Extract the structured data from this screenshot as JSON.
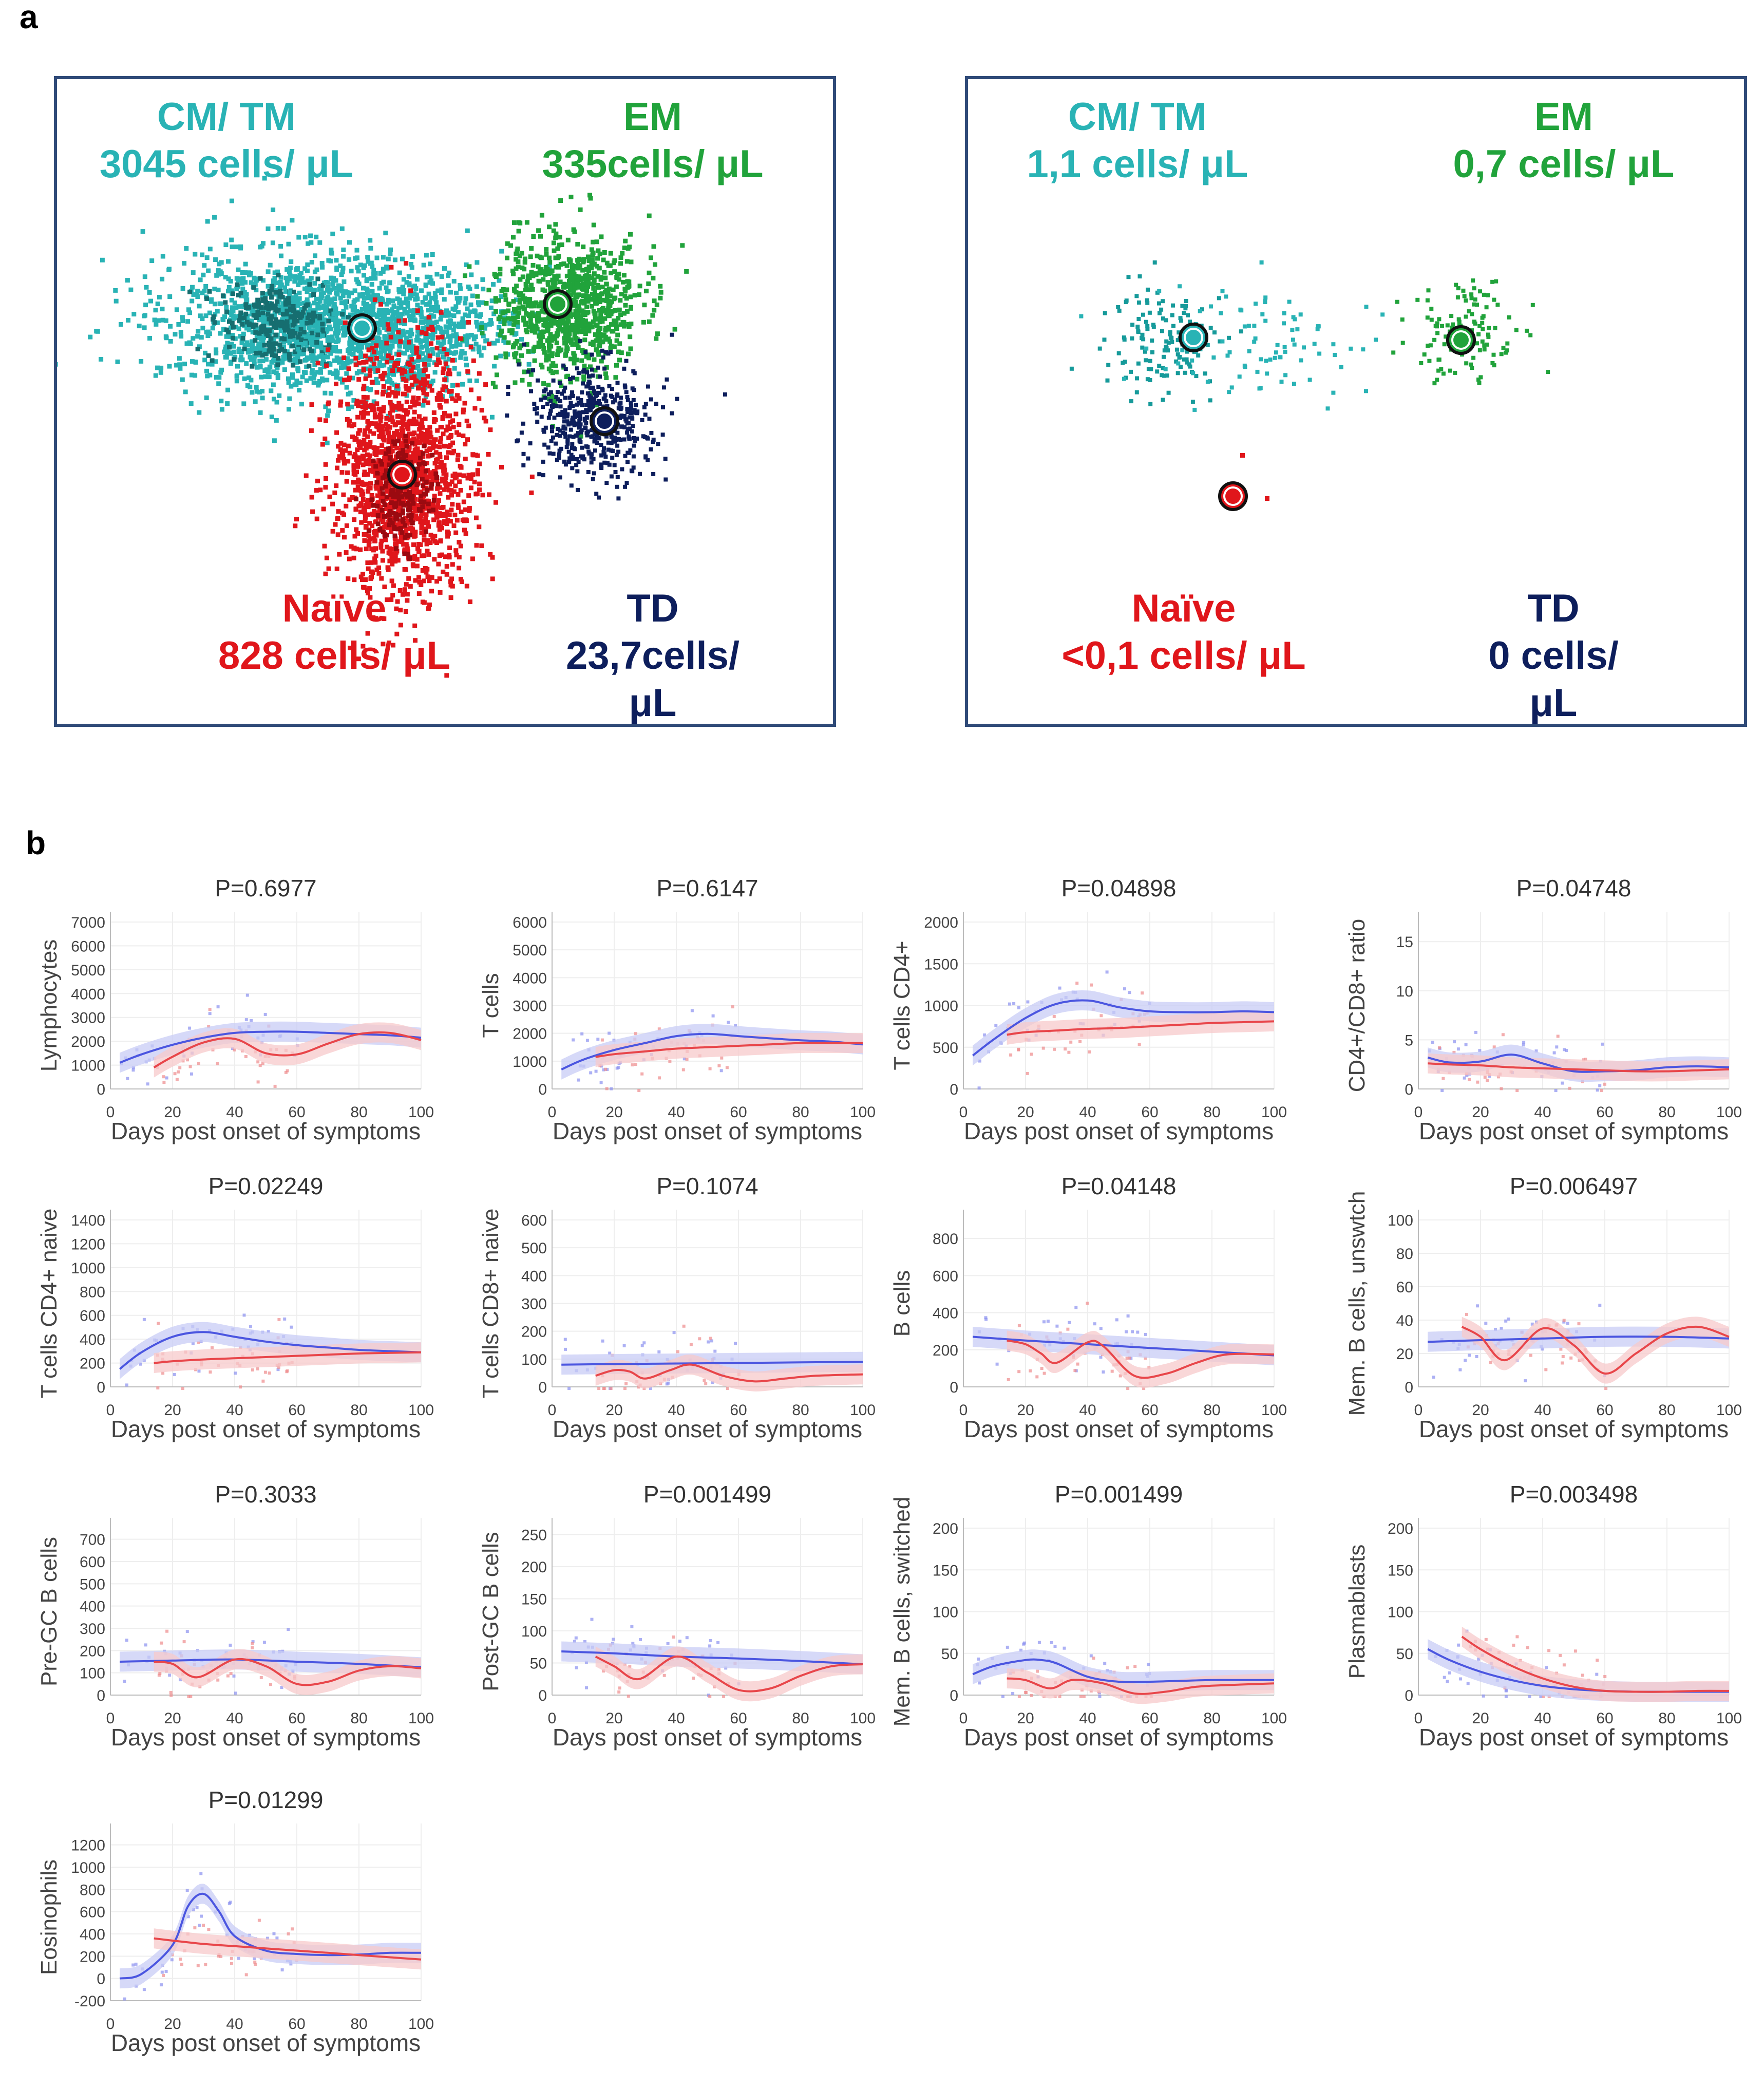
{
  "panel_a": {
    "letter": "a",
    "left": {
      "cm_tm": {
        "title": "CM/ TM",
        "value": "3045 cells/ μL"
      },
      "em": {
        "title": "EM",
        "value": "335cells/ μL"
      },
      "naive": {
        "title": "Naïve",
        "value": "828 cells/ μL"
      },
      "td": {
        "title": "TD",
        "value_line1": "23,7cells/",
        "value_line2": "μL"
      }
    },
    "right": {
      "cm_tm": {
        "title": "CM/ TM",
        "value": "1,1 cells/ μL"
      },
      "em": {
        "title": "EM",
        "value": "0,7 cells/ μL"
      },
      "naive": {
        "title": "Naïve",
        "value": "<0,1 cells/ μL"
      },
      "td": {
        "title": "TD",
        "value_line1": "0 cells/",
        "value_line2": "μL"
      }
    },
    "colors": {
      "cm_tm": "#29b3b5",
      "em": "#21a33b",
      "naive": "#e0161b",
      "td": "#0d1e5c",
      "box": "#2f4a78"
    }
  },
  "panel_b": {
    "letter": "b",
    "x_axis_label": "Days post onset of symptoms",
    "colors": {
      "blue": "#4b56e0",
      "red": "#e8464a",
      "blue_band": "#c8ccf5",
      "red_band": "#f7c9cb"
    }
  },
  "chart_data": [
    {
      "type": "line",
      "title": "P=0.6977",
      "ylabel": "Lymphocytes",
      "xlim": [
        0,
        100
      ],
      "ylim": [
        0,
        7000
      ],
      "yticks": [
        0,
        1000,
        2000,
        3000,
        4000,
        5000,
        6000,
        7000
      ],
      "xticks": [
        0,
        20,
        40,
        60,
        80,
        100
      ],
      "series": [
        {
          "color": "blue",
          "x": [
            3,
            10,
            20,
            30,
            40,
            50,
            60,
            70,
            80,
            90,
            100
          ],
          "y": [
            1100,
            1450,
            1850,
            2150,
            2350,
            2400,
            2400,
            2350,
            2300,
            2250,
            2150
          ]
        },
        {
          "color": "red",
          "x": [
            14,
            20,
            30,
            40,
            50,
            60,
            70,
            80,
            90,
            100
          ],
          "y": [
            900,
            1350,
            1950,
            2100,
            1500,
            1450,
            1900,
            2300,
            2350,
            2050
          ]
        }
      ]
    },
    {
      "type": "line",
      "title": "P=0.6147",
      "ylabel": "T cells",
      "xlim": [
        0,
        100
      ],
      "ylim": [
        0,
        6000
      ],
      "yticks": [
        0,
        1000,
        2000,
        3000,
        4000,
        5000,
        6000
      ],
      "xticks": [
        0,
        20,
        40,
        60,
        80,
        100
      ],
      "series": [
        {
          "color": "blue",
          "x": [
            3,
            10,
            20,
            30,
            40,
            50,
            60,
            70,
            80,
            90,
            100
          ],
          "y": [
            700,
            1050,
            1400,
            1650,
            1900,
            1980,
            1900,
            1820,
            1750,
            1700,
            1600
          ]
        },
        {
          "color": "red",
          "x": [
            14,
            20,
            30,
            40,
            50,
            60,
            70,
            80,
            90,
            100
          ],
          "y": [
            1150,
            1250,
            1350,
            1450,
            1500,
            1550,
            1600,
            1650,
            1650,
            1650
          ]
        }
      ]
    },
    {
      "type": "line",
      "title": "P=0.04898",
      "ylabel": "T cells CD4+",
      "xlim": [
        0,
        100
      ],
      "ylim": [
        0,
        2000
      ],
      "yticks": [
        0,
        500,
        1000,
        1500,
        2000
      ],
      "xticks": [
        0,
        20,
        40,
        60,
        80,
        100
      ],
      "series": [
        {
          "color": "blue",
          "x": [
            3,
            10,
            20,
            30,
            40,
            50,
            60,
            70,
            80,
            90,
            100
          ],
          "y": [
            400,
            600,
            850,
            1020,
            1060,
            980,
            930,
            920,
            920,
            930,
            920
          ]
        },
        {
          "color": "red",
          "x": [
            14,
            20,
            30,
            40,
            50,
            60,
            70,
            80,
            90,
            100
          ],
          "y": [
            650,
            680,
            700,
            720,
            730,
            750,
            770,
            790,
            800,
            810
          ]
        }
      ]
    },
    {
      "type": "line",
      "title": "P=0.04748",
      "ylabel": "CD4+/CD8+ ratio",
      "xlim": [
        0,
        100
      ],
      "ylim": [
        0,
        17
      ],
      "yticks": [
        0,
        5,
        10,
        15
      ],
      "xticks": [
        0,
        20,
        40,
        60,
        80,
        100
      ],
      "series": [
        {
          "color": "blue",
          "x": [
            3,
            10,
            20,
            30,
            40,
            50,
            60,
            70,
            80,
            90,
            100
          ],
          "y": [
            3.2,
            2.7,
            2.8,
            3.5,
            2.6,
            1.8,
            1.8,
            1.9,
            2.2,
            2.3,
            2.2
          ]
        },
        {
          "color": "red",
          "x": [
            3,
            10,
            20,
            30,
            40,
            50,
            60,
            70,
            80,
            90,
            100
          ],
          "y": [
            2.6,
            2.5,
            2.4,
            2.2,
            2.1,
            2.0,
            1.9,
            1.8,
            1.8,
            1.9,
            2.0
          ]
        }
      ]
    },
    {
      "type": "line",
      "title": "P=0.02249",
      "ylabel": "T cells CD4+ naive",
      "xlim": [
        0,
        100
      ],
      "ylim": [
        0,
        1400
      ],
      "yticks": [
        0,
        200,
        400,
        600,
        800,
        1000,
        1200,
        1400
      ],
      "xticks": [
        0,
        20,
        40,
        60,
        80,
        100
      ],
      "series": [
        {
          "color": "blue",
          "x": [
            3,
            10,
            20,
            30,
            40,
            50,
            60,
            70,
            80,
            90,
            100
          ],
          "y": [
            150,
            290,
            420,
            460,
            420,
            380,
            350,
            330,
            310,
            300,
            290
          ]
        },
        {
          "color": "red",
          "x": [
            14,
            20,
            30,
            40,
            50,
            60,
            70,
            80,
            90,
            100
          ],
          "y": [
            200,
            215,
            230,
            240,
            250,
            260,
            270,
            280,
            285,
            290
          ]
        }
      ]
    },
    {
      "type": "line",
      "title": "P=0.1074",
      "ylabel": "T cells CD8+ naive",
      "xlim": [
        0,
        100
      ],
      "ylim": [
        0,
        600
      ],
      "yticks": [
        0,
        100,
        200,
        300,
        400,
        500,
        600
      ],
      "xticks": [
        0,
        20,
        40,
        60,
        80,
        100
      ],
      "series": [
        {
          "color": "blue",
          "x": [
            3,
            20,
            40,
            60,
            80,
            100
          ],
          "y": [
            80,
            82,
            84,
            86,
            88,
            90
          ]
        },
        {
          "color": "red",
          "x": [
            14,
            20,
            25,
            30,
            38,
            45,
            55,
            65,
            75,
            85,
            100
          ],
          "y": [
            40,
            60,
            55,
            30,
            60,
            80,
            40,
            20,
            30,
            40,
            45
          ]
        }
      ]
    },
    {
      "type": "line",
      "title": "P=0.04148",
      "ylabel": "B cells",
      "xlim": [
        0,
        100
      ],
      "ylim": [
        0,
        900
      ],
      "yticks": [
        0,
        200,
        400,
        600,
        800
      ],
      "xticks": [
        0,
        20,
        40,
        60,
        80,
        100
      ],
      "series": [
        {
          "color": "blue",
          "x": [
            3,
            20,
            40,
            60,
            80,
            100
          ],
          "y": [
            270,
            250,
            230,
            210,
            190,
            170
          ]
        },
        {
          "color": "red",
          "x": [
            14,
            20,
            25,
            30,
            40,
            45,
            55,
            65,
            75,
            85,
            100
          ],
          "y": [
            250,
            230,
            180,
            130,
            240,
            220,
            60,
            70,
            130,
            175,
            175
          ]
        }
      ]
    },
    {
      "type": "line",
      "title": "P=0.006497",
      "ylabel": "Mem. B cells, unswtch",
      "xlim": [
        0,
        100
      ],
      "ylim": [
        0,
        100
      ],
      "yticks": [
        0,
        20,
        40,
        60,
        80,
        100
      ],
      "xticks": [
        0,
        20,
        40,
        60,
        80,
        100
      ],
      "series": [
        {
          "color": "blue",
          "x": [
            3,
            20,
            40,
            60,
            80,
            100
          ],
          "y": [
            27,
            28,
            29,
            30,
            30,
            29
          ]
        },
        {
          "color": "red",
          "x": [
            14,
            20,
            28,
            40,
            50,
            60,
            70,
            80,
            90,
            100
          ],
          "y": [
            36,
            30,
            16,
            35,
            25,
            8,
            20,
            32,
            36,
            30
          ]
        }
      ]
    },
    {
      "type": "line",
      "title": "P=0.3033",
      "ylabel": "Pre-GC B cells",
      "xlim": [
        0,
        100
      ],
      "ylim": [
        0,
        750
      ],
      "yticks": [
        0,
        100,
        200,
        300,
        400,
        500,
        600,
        700
      ],
      "xticks": [
        0,
        20,
        40,
        60,
        80,
        100
      ],
      "series": [
        {
          "color": "blue",
          "x": [
            3,
            20,
            40,
            60,
            80,
            100
          ],
          "y": [
            150,
            155,
            160,
            150,
            140,
            125
          ]
        },
        {
          "color": "red",
          "x": [
            14,
            20,
            28,
            40,
            50,
            60,
            70,
            80,
            90,
            100
          ],
          "y": [
            150,
            140,
            80,
            160,
            130,
            50,
            60,
            110,
            130,
            120
          ]
        }
      ]
    },
    {
      "type": "line",
      "title": "P=0.001499",
      "ylabel": "Post-GC B cells",
      "xlim": [
        0,
        100
      ],
      "ylim": [
        0,
        260
      ],
      "yticks": [
        0,
        50,
        100,
        150,
        200,
        250
      ],
      "xticks": [
        0,
        20,
        40,
        60,
        80,
        100
      ],
      "series": [
        {
          "color": "blue",
          "x": [
            3,
            20,
            40,
            60,
            80,
            100
          ],
          "y": [
            68,
            65,
            60,
            57,
            53,
            48
          ]
        },
        {
          "color": "red",
          "x": [
            14,
            20,
            28,
            40,
            50,
            60,
            70,
            80,
            90,
            100
          ],
          "y": [
            60,
            45,
            25,
            60,
            35,
            8,
            10,
            30,
            45,
            48
          ]
        }
      ]
    },
    {
      "type": "line",
      "title": "P=0.001499",
      "ylabel": "Mem. B cells, switched",
      "xlim": [
        0,
        100
      ],
      "ylim": [
        0,
        200
      ],
      "yticks": [
        0,
        50,
        100,
        150,
        200
      ],
      "xticks": [
        0,
        20,
        40,
        60,
        80,
        100
      ],
      "series": [
        {
          "color": "blue",
          "x": [
            3,
            10,
            20,
            25,
            30,
            40,
            50,
            60,
            70,
            80,
            90,
            100
          ],
          "y": [
            25,
            35,
            42,
            42,
            38,
            22,
            16,
            16,
            17,
            18,
            18,
            18
          ]
        },
        {
          "color": "red",
          "x": [
            14,
            20,
            28,
            35,
            45,
            55,
            65,
            75,
            85,
            100
          ],
          "y": [
            20,
            18,
            8,
            18,
            14,
            2,
            4,
            10,
            12,
            14
          ]
        }
      ]
    },
    {
      "type": "line",
      "title": "P=0.003498",
      "ylabel": "Plasmablasts",
      "xlim": [
        0,
        100
      ],
      "ylim": [
        0,
        200
      ],
      "yticks": [
        0,
        50,
        100,
        150,
        200
      ],
      "xticks": [
        0,
        20,
        40,
        60,
        80,
        100
      ],
      "series": [
        {
          "color": "blue",
          "x": [
            3,
            10,
            20,
            30,
            40,
            50,
            60,
            70,
            80,
            90,
            100
          ],
          "y": [
            55,
            42,
            28,
            18,
            11,
            7,
            5,
            4,
            4,
            4,
            4
          ]
        },
        {
          "color": "red",
          "x": [
            14,
            20,
            30,
            40,
            50,
            60,
            70,
            80,
            90,
            100
          ],
          "y": [
            70,
            55,
            35,
            20,
            10,
            5,
            4,
            4,
            5,
            5
          ]
        }
      ]
    },
    {
      "type": "line",
      "title": "P=0.01299",
      "ylabel": "Eosinophils",
      "xlim": [
        0,
        100
      ],
      "ylim": [
        -200,
        1300
      ],
      "yticks": [
        -200,
        0,
        200,
        400,
        600,
        800,
        1000,
        1200
      ],
      "xticks": [
        0,
        20,
        40,
        60,
        80,
        100
      ],
      "series": [
        {
          "color": "blue",
          "x": [
            3,
            10,
            20,
            25,
            30,
            35,
            40,
            50,
            60,
            70,
            80,
            90,
            100
          ],
          "y": [
            0,
            40,
            300,
            650,
            760,
            600,
            380,
            250,
            220,
            210,
            215,
            230,
            230
          ]
        },
        {
          "color": "red",
          "x": [
            14,
            20,
            30,
            40,
            50,
            60,
            70,
            80,
            90,
            100
          ],
          "y": [
            360,
            340,
            310,
            290,
            270,
            250,
            230,
            210,
            190,
            170
          ]
        }
      ]
    }
  ]
}
